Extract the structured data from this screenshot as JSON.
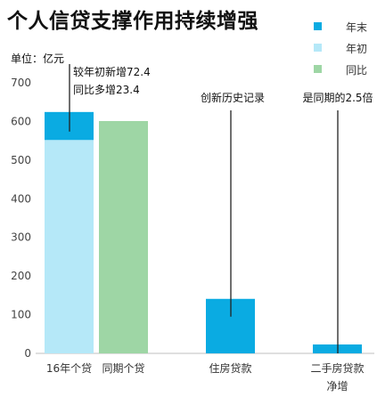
{
  "title": "个人信贷支撑作用持续增强",
  "unit_label": "单位：亿元",
  "legend": [
    {
      "name": "年末",
      "color": "#0AABE2"
    },
    {
      "name": "年初",
      "color": "#B5E8F8"
    },
    {
      "name": "同比",
      "color": "#9ED6A5"
    }
  ],
  "chart_data": {
    "type": "bar",
    "ylim": [
      0,
      700
    ],
    "y_ticks": [
      0,
      100,
      200,
      300,
      400,
      500,
      600,
      700
    ],
    "categories": [
      "16年个贷",
      "同期个贷",
      "住房贷款",
      "二手房贷款净增"
    ],
    "category_labels": [
      [
        "16年个贷"
      ],
      [
        "同期个贷"
      ],
      [
        "住房贷款"
      ],
      [
        "二手房贷款",
        "净增"
      ]
    ],
    "bars": [
      {
        "category": "16年个贷",
        "segments": [
          {
            "series": "年初",
            "value": 552,
            "color": "#B5E8F8"
          },
          {
            "series": "年末",
            "value": 72.4,
            "color": "#0AABE2"
          }
        ]
      },
      {
        "category": "同期个贷",
        "segments": [
          {
            "series": "同比",
            "value": 601,
            "color": "#9ED6A5"
          }
        ]
      },
      {
        "category": "住房贷款",
        "segments": [
          {
            "series": "年末",
            "value": 141,
            "color": "#0AABE2"
          }
        ]
      },
      {
        "category": "二手房贷款净增",
        "segments": [
          {
            "series": "年末",
            "value": 23,
            "color": "#0AABE2"
          }
        ]
      }
    ],
    "annotations": [
      {
        "bar": 0,
        "lines": [
          "较年初新增72.4",
          "同比多增23.4"
        ]
      },
      {
        "bar": 2,
        "lines": [
          "创新历史记录"
        ]
      },
      {
        "bar": 3,
        "lines": [
          "是同期的2.5倍"
        ]
      }
    ]
  }
}
